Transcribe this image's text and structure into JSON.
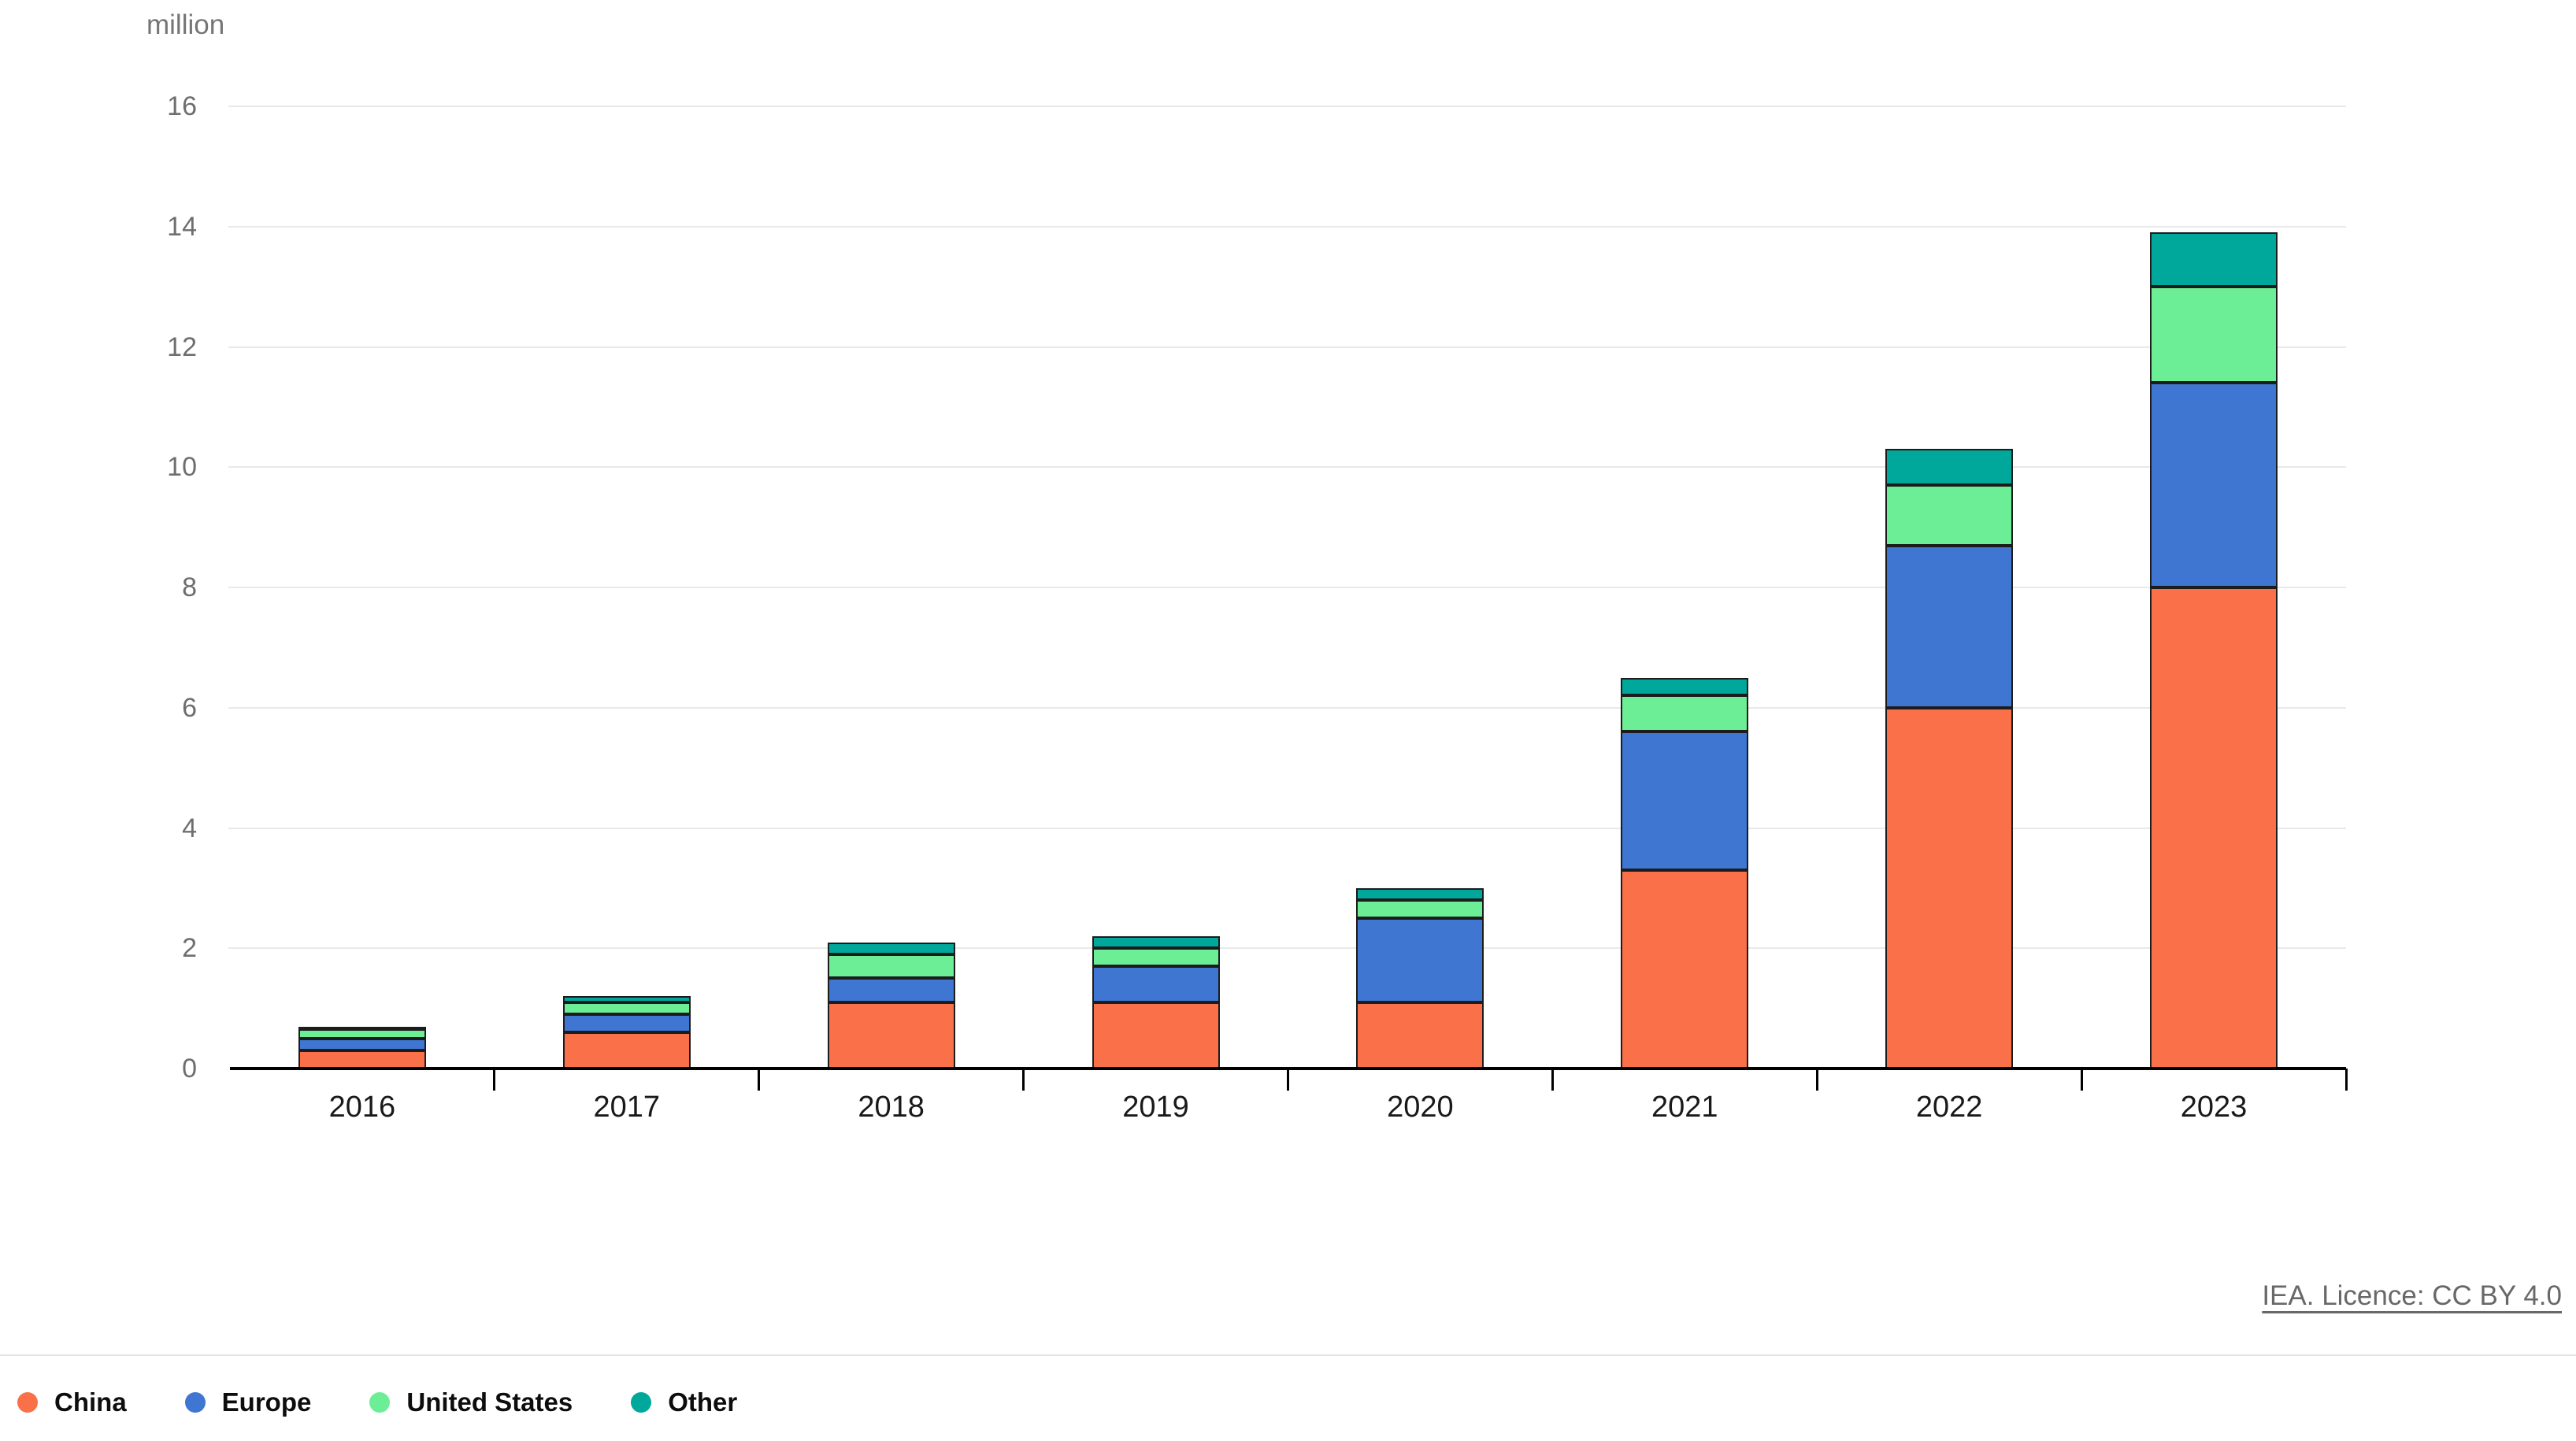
{
  "unit_label": "million",
  "source": {
    "text": "IEA. Licence: CC BY 4.0"
  },
  "colors": {
    "china": "#FA7149",
    "europe": "#3E76D1",
    "united_states": "#6CEE96",
    "other": "#00A79B",
    "gridline": "#e9e9e9",
    "axis": "#000000",
    "tick_text": "#6e6e6e",
    "year_text": "#191919",
    "source_text": "#686868"
  },
  "chart_data": {
    "type": "bar",
    "stacked": true,
    "title": "",
    "ylabel": "million",
    "xlabel": "",
    "categories": [
      "2016",
      "2017",
      "2018",
      "2019",
      "2020",
      "2021",
      "2022",
      "2023"
    ],
    "series": [
      {
        "name": "China",
        "color": "#FA7149",
        "values": [
          0.3,
          0.6,
          1.1,
          1.1,
          1.1,
          3.3,
          6.0,
          8.0
        ]
      },
      {
        "name": "Europe",
        "color": "#3E76D1",
        "values": [
          0.2,
          0.3,
          0.4,
          0.6,
          1.4,
          2.3,
          2.7,
          3.4
        ]
      },
      {
        "name": "United States",
        "color": "#6CEE96",
        "values": [
          0.15,
          0.2,
          0.4,
          0.3,
          0.3,
          0.6,
          1.0,
          1.6
        ]
      },
      {
        "name": "Other",
        "color": "#00A79B",
        "values": [
          0.05,
          0.1,
          0.2,
          0.2,
          0.2,
          0.3,
          0.6,
          0.9
        ]
      }
    ],
    "totals": [
      0.7,
      1.2,
      2.1,
      2.2,
      3.0,
      6.5,
      10.3,
      13.9
    ],
    "ylim": [
      0,
      16
    ],
    "ytick_step": 2,
    "ytick_labels": [
      "0",
      "2",
      "4",
      "6",
      "8",
      "10",
      "12",
      "14",
      "16"
    ],
    "grid": true,
    "legend_position": "bottom"
  }
}
